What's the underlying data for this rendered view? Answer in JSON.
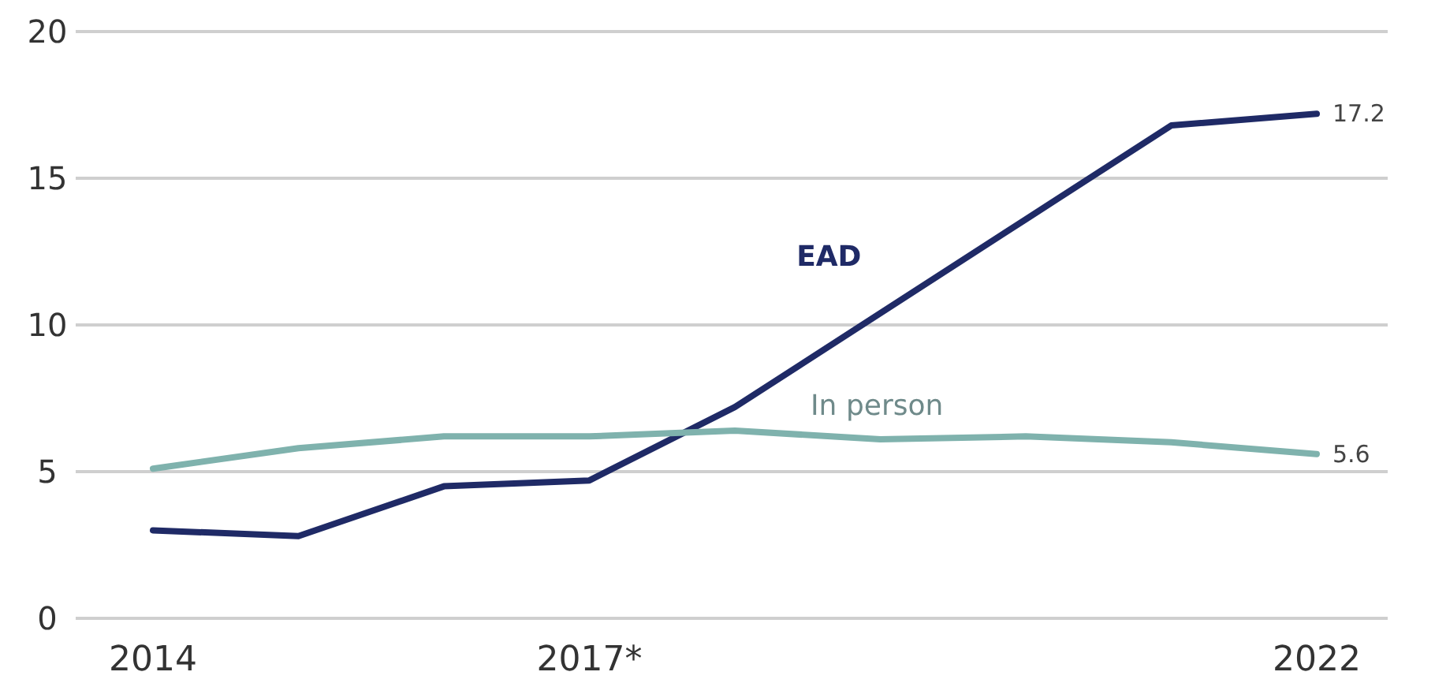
{
  "chart_data": {
    "type": "line",
    "categories": [
      "2014",
      null,
      null,
      "2017*",
      null,
      null,
      null,
      null,
      "2022"
    ],
    "series": [
      {
        "name": "EAD",
        "color": "#1f2a66",
        "values": [
          3.0,
          2.8,
          4.5,
          4.7,
          7.2,
          10.4,
          13.6,
          16.8,
          17.2
        ],
        "value_labels": [
          null,
          null,
          null,
          null,
          null,
          null,
          null,
          null,
          "17.2"
        ]
      },
      {
        "name": "In person",
        "color": "#7fb2ad",
        "values": [
          5.1,
          5.8,
          6.2,
          6.2,
          6.4,
          6.1,
          6.2,
          6.0,
          5.6
        ],
        "value_labels": [
          null,
          null,
          null,
          null,
          null,
          null,
          null,
          null,
          "5.6"
        ]
      }
    ],
    "ylim": [
      0,
      20
    ],
    "yticks": [
      0,
      5,
      10,
      15,
      20
    ],
    "grid": "y",
    "marker": "none",
    "line_style": "solid"
  }
}
